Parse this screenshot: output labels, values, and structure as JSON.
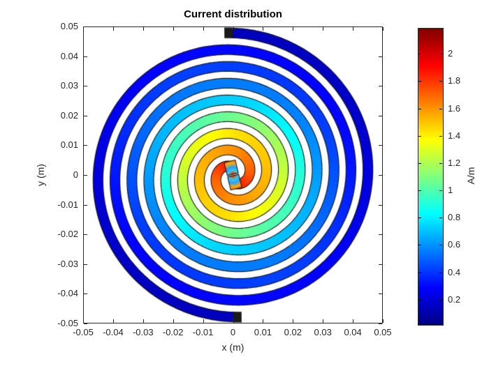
{
  "figure": {
    "title": "Current distribution",
    "background": "#FFFFFF"
  },
  "axes": {
    "xlabel": "x (m)",
    "ylabel": "y (m)",
    "xlim": [
      -0.05,
      0.05
    ],
    "ylim": [
      -0.05,
      0.05
    ],
    "xticks": [
      -0.05,
      -0.04,
      -0.03,
      -0.02,
      -0.01,
      0,
      0.01,
      0.02,
      0.03,
      0.04,
      0.05
    ],
    "xtick_labels": [
      "-0.05",
      "-0.04",
      "-0.03",
      "-0.02",
      "-0.01",
      "0",
      "0.01",
      "0.02",
      "0.03",
      "0.04",
      "0.05"
    ],
    "yticks": [
      0.05,
      0.04,
      0.03,
      0.02,
      0.01,
      0,
      -0.01,
      -0.02,
      -0.03,
      -0.04,
      -0.05
    ],
    "ytick_labels": [
      "0.05",
      "0.04",
      "0.03",
      "0.02",
      "0.01",
      "0",
      "-0.01",
      "-0.02",
      "-0.03",
      "-0.04",
      "-0.05"
    ],
    "tick_color": "#262626"
  },
  "colorbar": {
    "label": "A/m",
    "ticks": [
      0.2,
      0.4,
      0.6,
      0.8,
      1,
      1.2,
      1.4,
      1.6,
      1.8,
      2
    ],
    "tick_labels": [
      "0.2",
      "0.4",
      "0.6",
      "0.8",
      "1",
      "1.2",
      "1.4",
      "1.6",
      "1.8",
      "2"
    ],
    "clim": [
      0.02,
      2.19
    ]
  },
  "chart_data": {
    "type": "heatmap",
    "subtype": "spiral-antenna-current-pseudocolor",
    "title": "Current distribution",
    "xlabel": "x (m)",
    "ylabel": "y (m)",
    "xlim": [
      -0.05,
      0.05
    ],
    "ylim": [
      -0.05,
      0.05
    ],
    "grid": false,
    "colorbar_label": "A/m",
    "clim": [
      0.02,
      2.19
    ],
    "colormap": "jet",
    "colormap_stops": [
      [
        0,
        "#000083"
      ],
      [
        0.125,
        "#0000FF"
      ],
      [
        0.375,
        "#00FFFF"
      ],
      [
        0.625,
        "#FFFF00"
      ],
      [
        0.875,
        "#FF0000"
      ],
      [
        1,
        "#800000"
      ]
    ],
    "spiral": {
      "arms": 2,
      "arm_phase_deg": [
        0,
        180
      ],
      "r_start_m": 0.003,
      "growth_m_per_rad": 0.0018,
      "theta_end_rad": 24.9,
      "strip_width_m": 0.003,
      "end_angle_deg": 90,
      "winding": "ccw",
      "outline_color": "#1a1a1a"
    },
    "current_profile": [
      [
        0.0,
        2.15
      ],
      [
        0.02,
        1.85
      ],
      [
        0.06,
        1.72
      ],
      [
        0.11,
        1.62
      ],
      [
        0.18,
        1.52
      ],
      [
        0.24,
        1.44
      ],
      [
        0.3,
        1.28
      ],
      [
        0.36,
        1.1
      ],
      [
        0.43,
        0.92
      ],
      [
        0.49,
        0.74
      ],
      [
        0.56,
        0.63
      ],
      [
        0.62,
        0.55
      ],
      [
        0.68,
        0.48
      ],
      [
        0.74,
        0.42
      ],
      [
        0.8,
        0.36
      ],
      [
        0.87,
        0.3
      ],
      [
        0.93,
        0.23
      ],
      [
        1.0,
        0.14
      ]
    ],
    "ripple": {
      "amplitude": 0.1,
      "angular_frequency": 2,
      "phase": 0.8,
      "fade_start": 0.45,
      "fade_end": 0.8
    },
    "feed": {
      "pad_length_m": 0.0047,
      "pad_halfwidth_m": 0.0019,
      "gradient_stops": [
        [
          0,
          "#CC0000"
        ],
        [
          0.13,
          "#FF4400"
        ],
        [
          0.3,
          "#33CCEE"
        ],
        [
          0.55,
          "#2E9FFF"
        ],
        [
          0.8,
          "#FFAA00"
        ],
        [
          1,
          "#FF7700"
        ]
      ]
    }
  }
}
